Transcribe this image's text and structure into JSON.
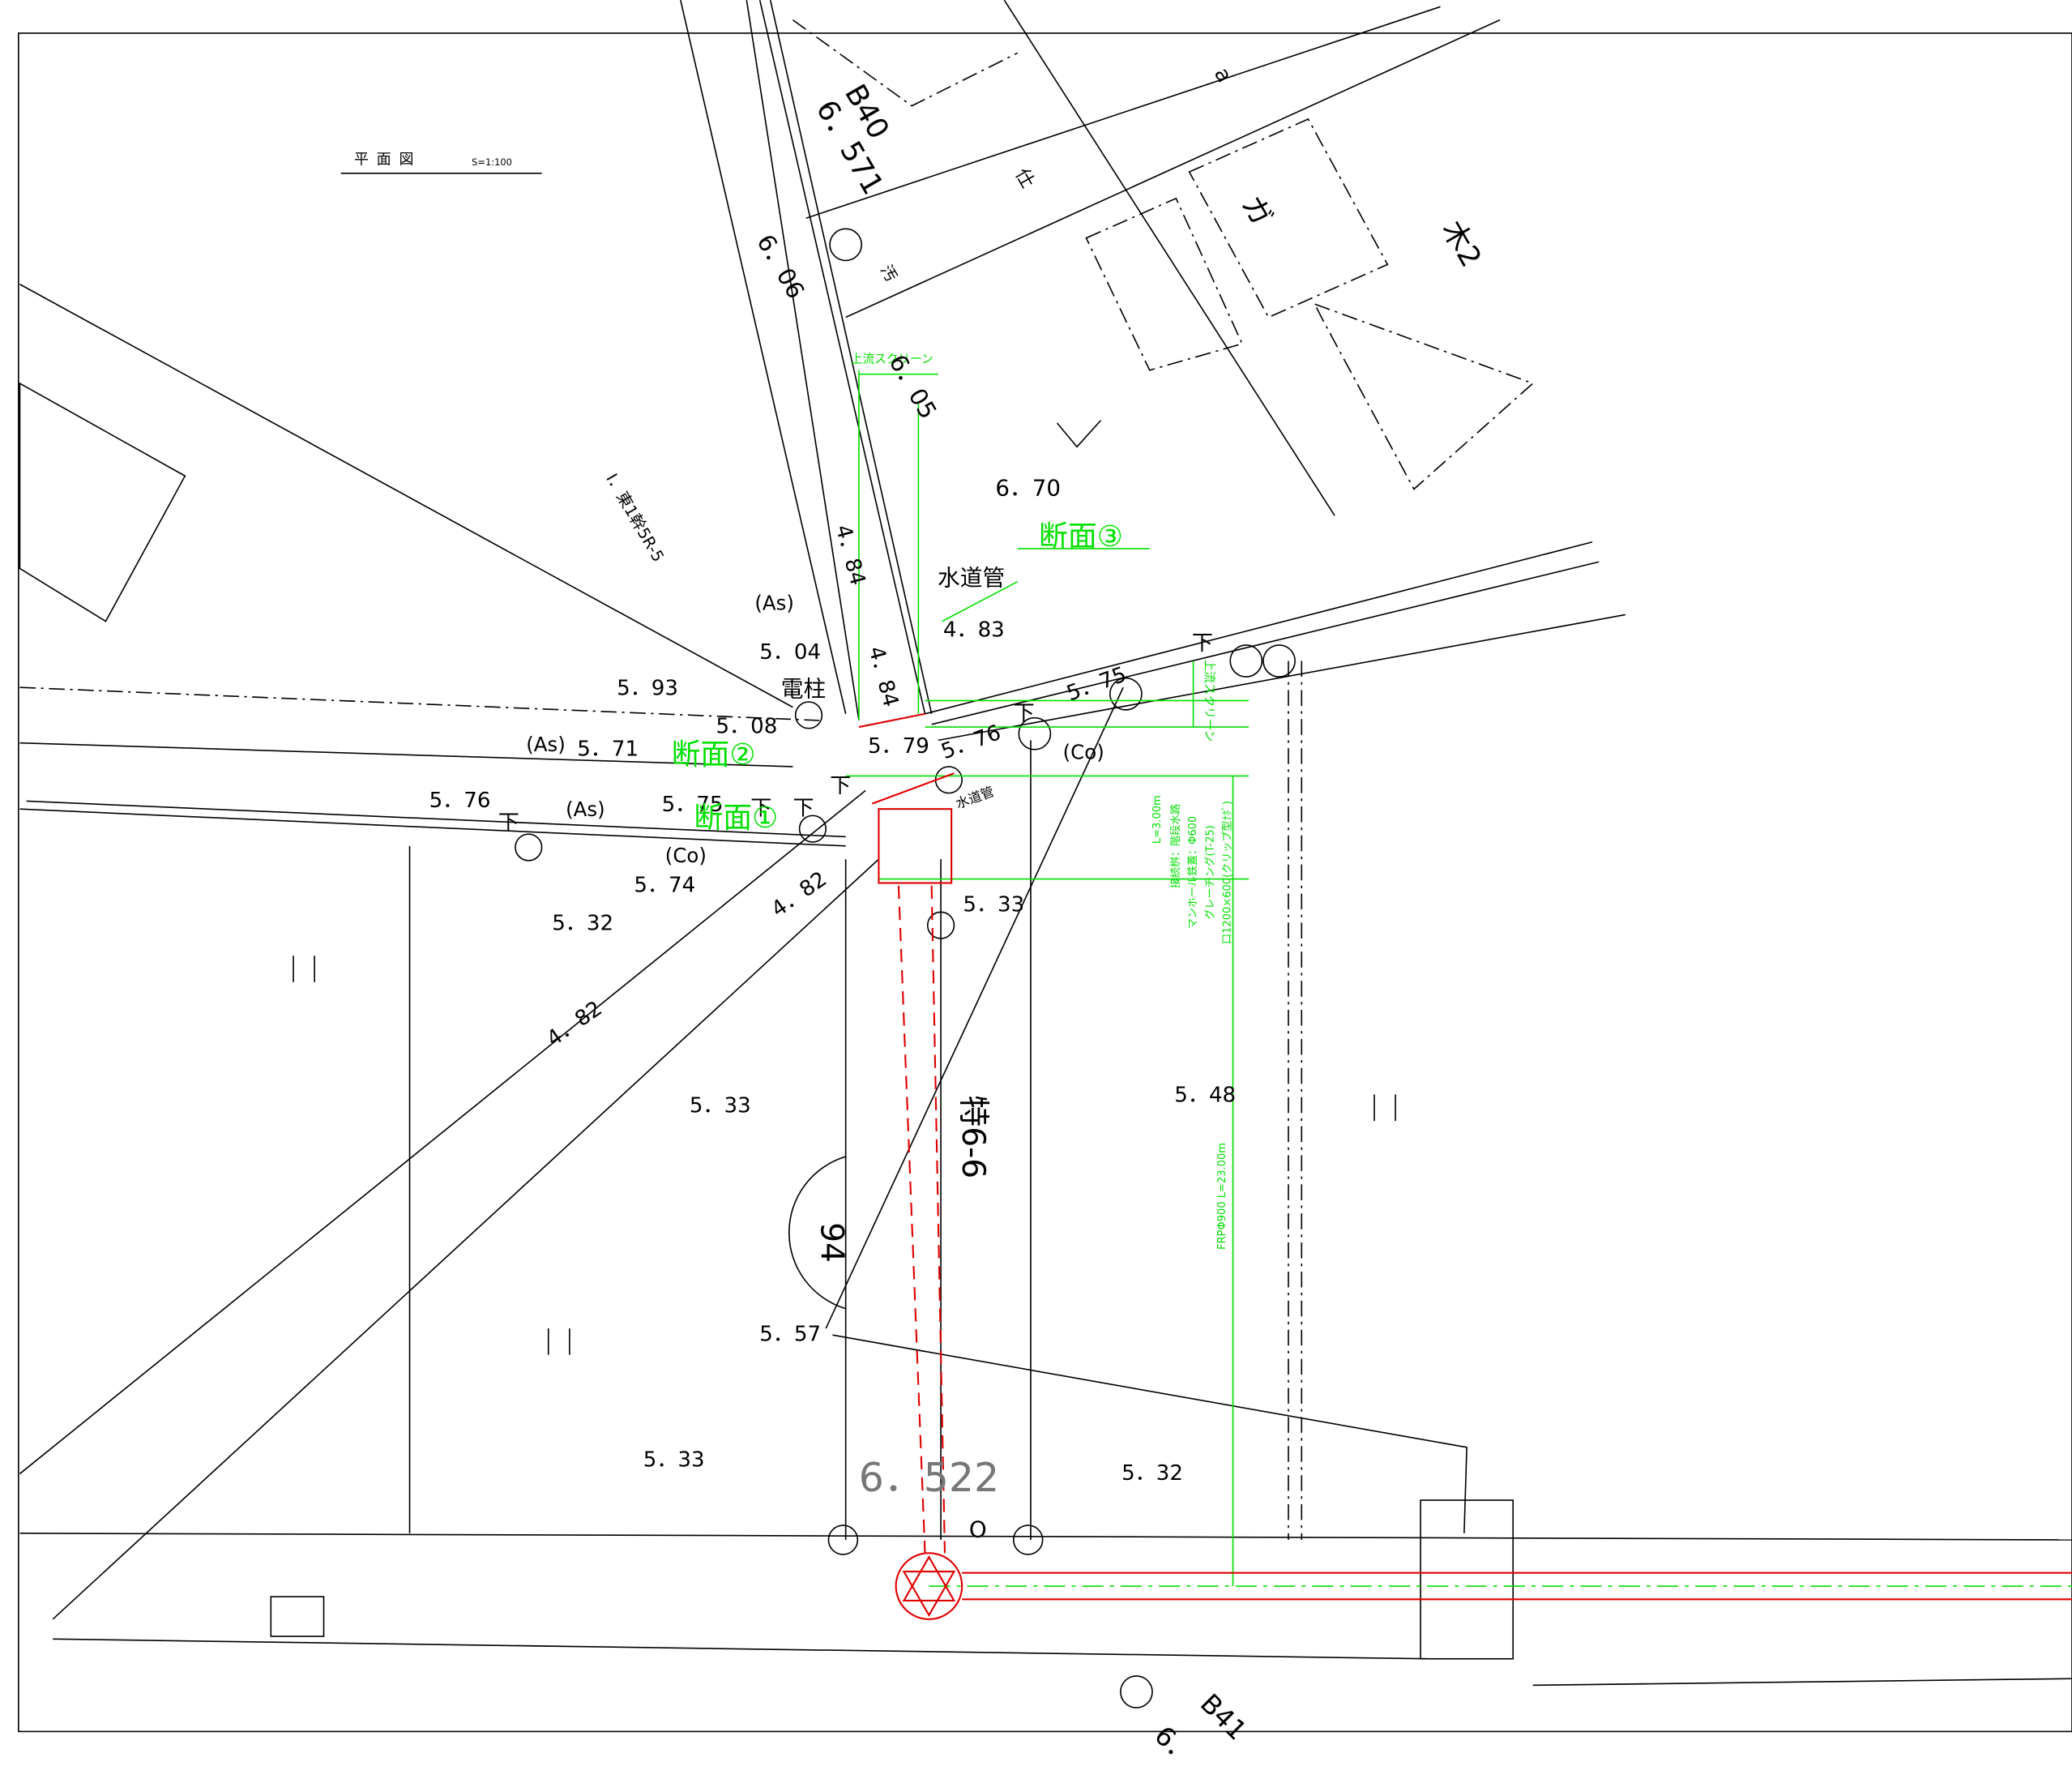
{
  "title": "平面図",
  "scale": "S=1:100",
  "labels": [
    "B40",
    "6．571",
    "a",
    "仕",
    "ガ",
    "木2",
    "汚",
    "6．06",
    "上流スクリーン",
    "6．05",
    "6．70",
    "断面③",
    "I．東1幹5R-5",
    "4．84",
    "水道管",
    "(As)",
    "4．83",
    "5．04",
    "下",
    "5．93",
    "電柱",
    "4．84",
    "5．75",
    "上流スクリーン",
    "5．08",
    "(As)",
    "5．71",
    "断面②",
    "5．79",
    "5．76",
    "下",
    "(Co)",
    "下",
    "5．76",
    "下",
    "(As)",
    "5．75",
    "下",
    "下",
    "断面①",
    "水道管",
    "(Co)",
    "5．74",
    "4．82",
    "5．33",
    "5．32",
    "L=3.00m",
    "接続桝：階段水路",
    "マンホール鉄蓋：Φ600",
    "グレーチング(T-25)",
    "口1200×600(クリップ型ﾅﾎﾞ)",
    "4．82",
    "5．33",
    "特6-6",
    "5．48",
    "94",
    "FRPΦ900 L=23.00m",
    "5．57",
    "5．33",
    "6．522",
    "5．32",
    "O",
    "B41",
    "6．"
  ]
}
